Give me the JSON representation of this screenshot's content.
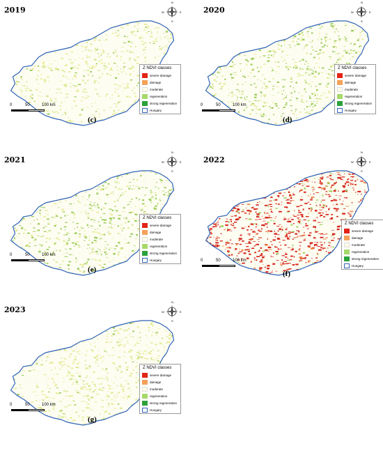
{
  "legend": {
    "title": "Z NDVI classes",
    "items": [
      {
        "label": "severe damage",
        "color": "#e32417"
      },
      {
        "label": "damage",
        "color": "#f5a15a"
      },
      {
        "label": "moderate",
        "color": "#fffde8"
      },
      {
        "label": "regeneration",
        "color": "#a6d96a"
      },
      {
        "label": "strong regeneration",
        "color": "#2ca13b"
      },
      {
        "label": "Hungary",
        "color": "none"
      }
    ]
  },
  "scale_bar": {
    "zero": "0",
    "mid": "50",
    "end": "100 km"
  },
  "compass": {
    "n": "N",
    "e": "E",
    "s": "S",
    "w": "W"
  },
  "panels": [
    {
      "year": "2019",
      "letter": "(c)",
      "dominant": "yellow"
    },
    {
      "year": "2020",
      "letter": "(d)",
      "dominant": "green"
    },
    {
      "year": "2021",
      "letter": "(e)",
      "dominant": "green"
    },
    {
      "year": "2022",
      "letter": "(f)",
      "dominant": "red"
    },
    {
      "year": "2023",
      "letter": "(g)",
      "dominant": "yellow"
    }
  ],
  "colors": {
    "border": "#2f63b8",
    "yellow": "#e8ec9a",
    "green": "#9ccc5a",
    "red": "#d7281e",
    "orange": "#f08a4b"
  }
}
